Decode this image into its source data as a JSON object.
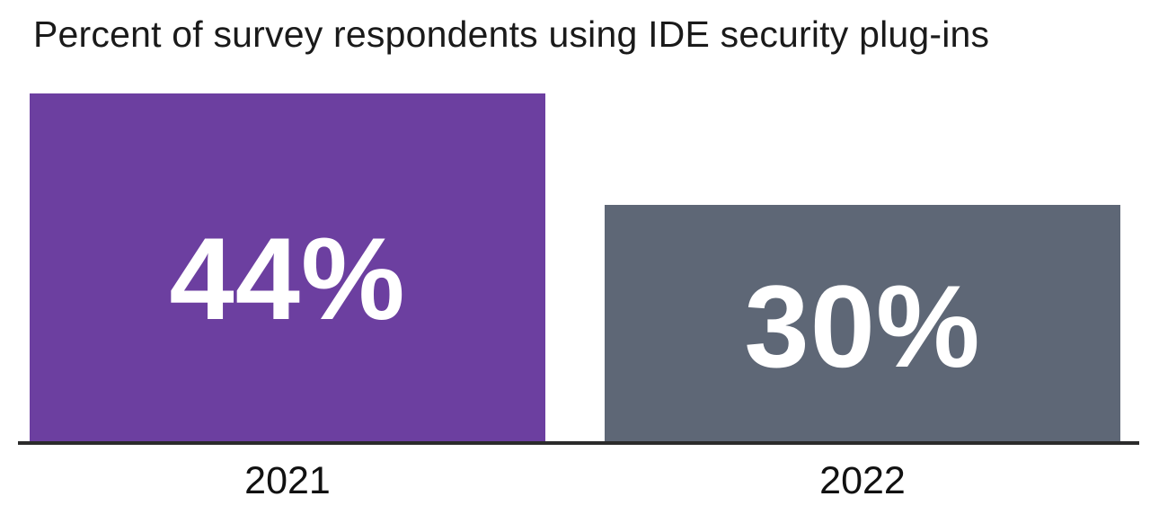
{
  "chart_data": {
    "type": "bar",
    "title": "Percent of survey respondents using IDE security plug-ins",
    "categories": [
      "2021",
      "2022"
    ],
    "values": [
      44,
      30
    ],
    "value_labels": [
      "44%",
      "30%"
    ],
    "xlabel": "",
    "ylabel": "",
    "ylim": [
      0,
      44
    ],
    "grid": false,
    "legend": "none",
    "bar_colors": [
      "#6C3FA0",
      "#5E6776"
    ],
    "value_label_color": "#FFFFFF",
    "axis_line_color": "#2B2B2B",
    "title_color": "#1A1A1A",
    "tick_label_color": "#111111",
    "background": "#FFFFFF"
  }
}
